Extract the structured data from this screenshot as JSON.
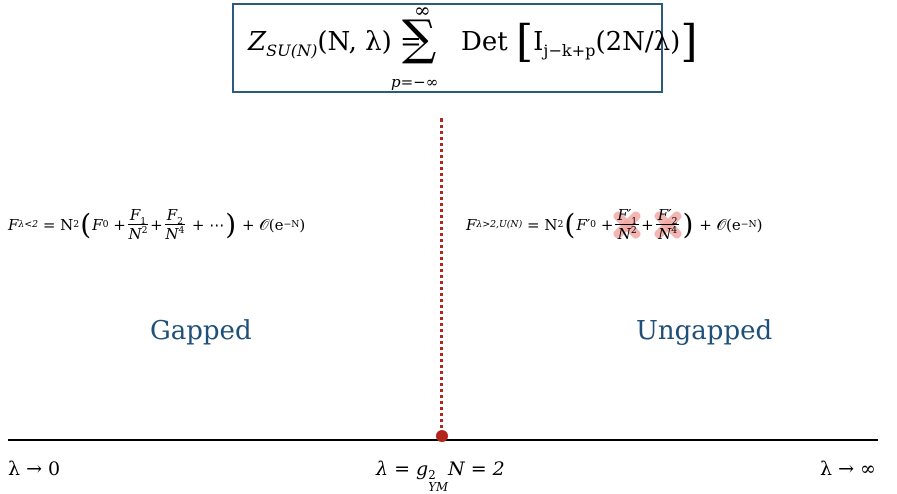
{
  "partition_function": {
    "lhs": "Z",
    "lhs_sub": "SU(N)",
    "lhs_args": "(N, λ) =",
    "sum_symbol": "∑",
    "sum_upper": "∞",
    "sum_lower": "p=−∞",
    "det": "Det",
    "bessel": "I",
    "bessel_sub": "j−k+p",
    "bessel_arg": "(2N/λ)"
  },
  "gapped": {
    "label": "Gapped",
    "lhs": "F",
    "lhs_sub": "λ<2",
    "eq": "= N",
    "eq_sup": "2",
    "f0": "F",
    "f0_sub": "0",
    "f1_num": "F",
    "f1_num_sub": "1",
    "f1_den": "N",
    "f1_den_sup": "2",
    "f2_num": "F",
    "f2_num_sub": "2",
    "f2_den": "N",
    "f2_den_sup": "4",
    "dots": "+ ⋯",
    "nonpert": "+ 𝒪(e",
    "nonpert_sup": "−N",
    "nonpert_close": ")"
  },
  "ungapped": {
    "label": "Ungapped",
    "lhs": "F",
    "lhs_sub": "λ>2,U(N)",
    "eq": "= N",
    "eq_sup": "2",
    "f0": "F′",
    "f0_sub": "0",
    "f1_num": "F′",
    "f1_num_sub": "1",
    "f1_den": "N",
    "f1_den_sup": "2",
    "f2_num": "F′",
    "f2_num_sub": "2",
    "f2_den": "N",
    "f2_den_sup": "4",
    "nonpert": "+ 𝒪(e",
    "nonpert_sup": "−N",
    "nonpert_close": ")"
  },
  "axis": {
    "left_label": "λ → 0",
    "right_label": "λ → ∞",
    "critical_pre": "λ = g",
    "critical_sup": "2",
    "critical_sub": "YM",
    "critical_post": "N = 2"
  },
  "colors": {
    "box_border": "#2a5a7e",
    "phase_text": "#1f5079",
    "critical_line": "#b3261e",
    "strike_mark": "#f2a9a5"
  }
}
